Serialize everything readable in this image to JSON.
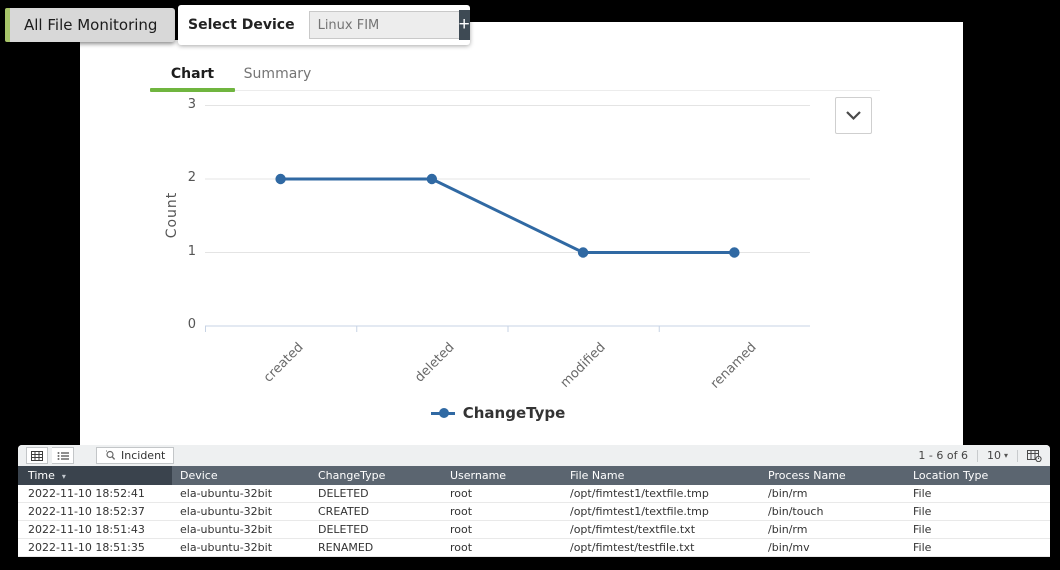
{
  "header": {
    "page_tab": "All File Monitoring",
    "select_device_label": "Select Device",
    "device_input_value": "Linux FIM",
    "add_device_label": "+"
  },
  "tabs": {
    "chart": "Chart",
    "summary": "Summary"
  },
  "icons": {
    "caret_down": "▾"
  },
  "colors": {
    "accent_green": "#70b53f",
    "tab_border_green": "#a8c46a",
    "series_blue": "#3069a3",
    "table_header_dark": "#3a434d",
    "table_header_slate": "#5b6570"
  },
  "chart_data": {
    "type": "line",
    "categories": [
      "created",
      "deleted",
      "modified",
      "renamed"
    ],
    "series": [
      {
        "name": "ChangeType",
        "values": [
          2,
          2,
          1,
          1
        ],
        "color": "#3069a3"
      }
    ],
    "title": "",
    "xlabel": "",
    "ylabel": "Count",
    "ylim": [
      0,
      3
    ],
    "yticks": [
      0,
      1,
      2,
      3
    ],
    "grid": true,
    "legend_position": "bottom"
  },
  "table": {
    "toolbar": {
      "incident_label": "Incident",
      "range_label": "1 - 6 of 6",
      "page_size": "10"
    },
    "columns": [
      "Time",
      "Device",
      "ChangeType",
      "Username",
      "File Name",
      "Process Name",
      "Location Type"
    ],
    "sorted_column": "Time",
    "rows": [
      [
        "2022-11-10 18:52:41",
        "ela-ubuntu-32bit",
        "DELETED",
        "root",
        "/opt/fimtest1/textfile.tmp",
        "/bin/rm",
        "File"
      ],
      [
        "2022-11-10 18:52:37",
        "ela-ubuntu-32bit",
        "CREATED",
        "root",
        "/opt/fimtest1/textfile.tmp",
        "/bin/touch",
        "File"
      ],
      [
        "2022-11-10 18:51:43",
        "ela-ubuntu-32bit",
        "DELETED",
        "root",
        "/opt/fimtest/textfile.txt",
        "/bin/rm",
        "File"
      ],
      [
        "2022-11-10 18:51:35",
        "ela-ubuntu-32bit",
        "RENAMED",
        "root",
        "/opt/fimtest/testfile.txt",
        "/bin/mv",
        "File"
      ]
    ]
  }
}
